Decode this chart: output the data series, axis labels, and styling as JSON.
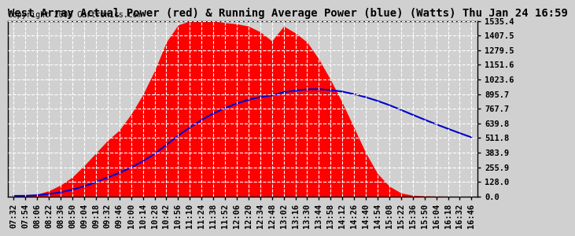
{
  "title": "West Array Actual Power (red) & Running Average Power (blue) (Watts) Thu Jan 24 16:59",
  "copyright": "Copyright 2008 Cartronics.com",
  "background_color": "#d0d0d0",
  "plot_bg_color": "#d0d0d0",
  "grid_color": "#aaaaaa",
  "yticks": [
    0.0,
    128.0,
    255.9,
    383.9,
    511.8,
    639.8,
    767.7,
    895.7,
    1023.6,
    1151.6,
    1279.5,
    1407.5,
    1535.4
  ],
  "ylim": [
    0.0,
    1535.4
  ],
  "red_color": "#ff0000",
  "blue_color": "#0000cc",
  "title_fontsize": 10,
  "copyright_fontsize": 7,
  "tick_fontsize": 7.5,
  "xtick_labels": [
    "07:32",
    "07:54",
    "08:06",
    "08:22",
    "08:36",
    "08:50",
    "09:04",
    "09:18",
    "09:32",
    "09:46",
    "10:00",
    "10:14",
    "10:28",
    "10:42",
    "10:56",
    "11:10",
    "11:24",
    "11:38",
    "11:52",
    "12:06",
    "12:20",
    "12:34",
    "12:48",
    "13:02",
    "13:16",
    "13:30",
    "13:44",
    "13:58",
    "14:12",
    "14:26",
    "14:40",
    "14:54",
    "15:08",
    "15:22",
    "15:36",
    "15:50",
    "16:04",
    "16:18",
    "16:32",
    "16:46"
  ],
  "actual_power": [
    5,
    8,
    20,
    50,
    100,
    170,
    270,
    380,
    490,
    580,
    720,
    890,
    1100,
    1350,
    1500,
    1535,
    1530,
    1535,
    1520,
    1510,
    1490,
    1440,
    1360,
    1490,
    1430,
    1350,
    1200,
    1020,
    820,
    600,
    380,
    200,
    90,
    30,
    10,
    5,
    3,
    2,
    1,
    0
  ],
  "running_avg": [
    5,
    6,
    11,
    21,
    37,
    59,
    89,
    125,
    166,
    207,
    253,
    308,
    372,
    451,
    531,
    604,
    668,
    726,
    773,
    813,
    846,
    869,
    884,
    911,
    927,
    937,
    938,
    931,
    917,
    895,
    868,
    836,
    799,
    757,
    714,
    672,
    631,
    592,
    554,
    517
  ]
}
